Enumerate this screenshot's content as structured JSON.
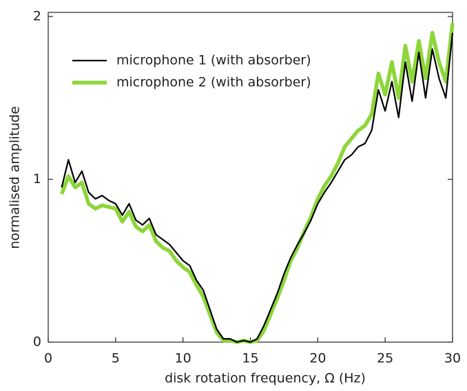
{
  "chart_data": {
    "type": "line",
    "xlabel": "disk rotation frequency, Ω (Hz)",
    "ylabel": "normalised amplitude",
    "x": [
      1,
      1.5,
      2,
      2.5,
      3,
      3.5,
      4,
      4.5,
      5,
      5.5,
      6,
      6.5,
      7,
      7.5,
      8,
      8.5,
      9,
      9.5,
      10,
      10.5,
      11,
      11.5,
      12,
      12.5,
      13,
      13.5,
      14,
      14.5,
      15,
      15.5,
      16,
      16.5,
      17,
      17.5,
      18,
      18.5,
      19,
      19.5,
      20,
      20.5,
      21,
      21.5,
      22,
      22.5,
      23,
      23.5,
      24,
      24.5,
      25,
      25.5,
      26,
      26.5,
      27,
      27.5,
      28,
      28.5,
      29,
      29.5,
      30
    ],
    "series": [
      {
        "name": "microphone 1 (with absorber)",
        "color": "#000000",
        "width": 2.2,
        "values": [
          0.95,
          1.12,
          0.98,
          1.05,
          0.92,
          0.88,
          0.9,
          0.87,
          0.85,
          0.78,
          0.85,
          0.75,
          0.72,
          0.76,
          0.66,
          0.63,
          0.6,
          0.55,
          0.5,
          0.47,
          0.38,
          0.32,
          0.2,
          0.08,
          0.02,
          0.02,
          0.0,
          0.01,
          0.0,
          0.02,
          0.1,
          0.2,
          0.3,
          0.42,
          0.52,
          0.6,
          0.67,
          0.75,
          0.85,
          0.92,
          0.98,
          1.05,
          1.12,
          1.15,
          1.2,
          1.22,
          1.3,
          1.55,
          1.42,
          1.6,
          1.38,
          1.72,
          1.48,
          1.78,
          1.5,
          1.8,
          1.62,
          1.5,
          1.9
        ]
      },
      {
        "name": "microphone 2 (with absorber)",
        "color": "#8dd63a",
        "width": 5.5,
        "values": [
          0.91,
          1.02,
          0.95,
          0.98,
          0.85,
          0.82,
          0.84,
          0.83,
          0.82,
          0.74,
          0.8,
          0.71,
          0.68,
          0.72,
          0.62,
          0.58,
          0.56,
          0.5,
          0.46,
          0.43,
          0.35,
          0.28,
          0.17,
          0.06,
          0.01,
          0.01,
          0.0,
          0.01,
          0.0,
          0.01,
          0.07,
          0.17,
          0.27,
          0.38,
          0.5,
          0.58,
          0.68,
          0.77,
          0.88,
          0.96,
          1.02,
          1.1,
          1.2,
          1.25,
          1.3,
          1.33,
          1.4,
          1.65,
          1.52,
          1.72,
          1.5,
          1.82,
          1.6,
          1.85,
          1.62,
          1.9,
          1.72,
          1.6,
          1.96
        ]
      }
    ],
    "xlim": [
      0,
      30
    ],
    "xticks": [
      0,
      5,
      10,
      15,
      20,
      25,
      30
    ],
    "ylim": [
      0,
      2
    ],
    "yticks": [
      0,
      1,
      2
    ],
    "legend": "upper left"
  }
}
